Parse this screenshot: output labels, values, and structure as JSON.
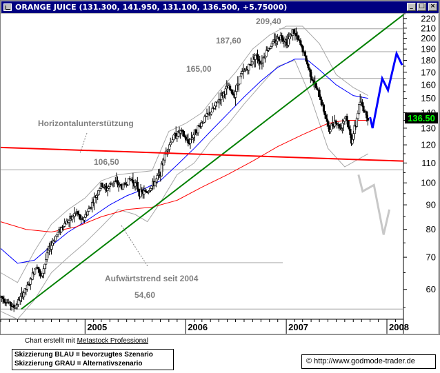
{
  "window": {
    "title": "ORANGE JUICE (131.300, 141.950, 131.100, 136.500, +5.75000)",
    "minimize_glyph": "_",
    "maximize_glyph": "□",
    "close_glyph": "×"
  },
  "chart_data": {
    "type": "candlestick",
    "title": "ORANGE JUICE",
    "y_scale": "log",
    "ylim": [
      52,
      225
    ],
    "x_range": [
      "2004-03",
      "2008-03"
    ],
    "last_price": "136.50",
    "y_ticks": [
      "220",
      "210",
      "200",
      "190",
      "180",
      "170",
      "160",
      "150",
      "140",
      "130",
      "120",
      "110",
      "100",
      "90",
      "80",
      "70",
      "60"
    ],
    "x_ticks": [
      "2005",
      "2006",
      "2007",
      "2008"
    ],
    "price_labels": {
      "high_209": "209,40",
      "level_187": "187,60",
      "level_165": "165,00",
      "level_106": "106,50",
      "low_54": "54,60"
    },
    "annotations": {
      "support": "Horizontalunterstützung",
      "uptrend": "Aufwärtstrend seit 2004"
    },
    "horizontal_levels": [
      209.4,
      187.6,
      165.0,
      106.5,
      54.6
    ],
    "price_path": [
      [
        "2004-03-01",
        58
      ],
      [
        "2004-04-01",
        56
      ],
      [
        "2004-04-20",
        55
      ],
      [
        "2004-05-15",
        58
      ],
      [
        "2004-06-15",
        62
      ],
      [
        "2004-07-10",
        68
      ],
      [
        "2004-07-25",
        63
      ],
      [
        "2004-08-20",
        72
      ],
      [
        "2004-09-15",
        77
      ],
      [
        "2004-10-15",
        82
      ],
      [
        "2004-11-10",
        84
      ],
      [
        "2004-12-01",
        87
      ],
      [
        "2004-12-20",
        83
      ],
      [
        "2005-01-15",
        88
      ],
      [
        "2005-02-10",
        94
      ],
      [
        "2005-03-01",
        99
      ],
      [
        "2005-03-20",
        97
      ],
      [
        "2005-04-15",
        101
      ],
      [
        "2005-05-15",
        98
      ],
      [
        "2005-06-15",
        102
      ],
      [
        "2005-07-05",
        99
      ],
      [
        "2005-07-20",
        95
      ],
      [
        "2005-08-15",
        96
      ],
      [
        "2005-09-10",
        100
      ],
      [
        "2005-10-01",
        105
      ],
      [
        "2005-10-25",
        118
      ],
      [
        "2005-11-20",
        125
      ],
      [
        "2005-12-15",
        128
      ],
      [
        "2006-01-10",
        121
      ],
      [
        "2006-02-10",
        129
      ],
      [
        "2006-03-10",
        136
      ],
      [
        "2006-04-10",
        142
      ],
      [
        "2006-05-10",
        152
      ],
      [
        "2006-06-05",
        158
      ],
      [
        "2006-06-25",
        152
      ],
      [
        "2006-07-20",
        168
      ],
      [
        "2006-08-20",
        175
      ],
      [
        "2006-09-10",
        185
      ],
      [
        "2006-10-01",
        178
      ],
      [
        "2006-10-25",
        190
      ],
      [
        "2006-11-20",
        197
      ],
      [
        "2006-12-10",
        202
      ],
      [
        "2007-01-05",
        197
      ],
      [
        "2007-01-25",
        207
      ],
      [
        "2007-02-10",
        200
      ],
      [
        "2007-03-01",
        190
      ],
      [
        "2007-03-20",
        175
      ],
      [
        "2007-04-10",
        162
      ],
      [
        "2007-05-01",
        152
      ],
      [
        "2007-05-20",
        140
      ],
      [
        "2007-06-05",
        128
      ],
      [
        "2007-06-25",
        135
      ],
      [
        "2007-07-15",
        130
      ],
      [
        "2007-08-05",
        138
      ],
      [
        "2007-08-25",
        122
      ],
      [
        "2007-09-10",
        132
      ],
      [
        "2007-09-25",
        148
      ],
      [
        "2007-10-10",
        142
      ],
      [
        "2007-10-25",
        136.5
      ]
    ],
    "series": [
      {
        "color": "#0000ff",
        "values": [
          [
            "2004-03-01",
            73
          ],
          [
            "2004-05-01",
            68
          ],
          [
            "2004-07-01",
            69
          ],
          [
            "2004-09-01",
            74
          ],
          [
            "2004-11-01",
            79
          ],
          [
            "2005-01-01",
            83
          ],
          [
            "2005-04-01",
            90
          ],
          [
            "2005-06-01",
            94
          ],
          [
            "2005-08-01",
            97
          ],
          [
            "2005-10-01",
            101
          ],
          [
            "2005-12-01",
            109
          ],
          [
            "2006-02-01",
            118
          ],
          [
            "2006-04-01",
            128
          ],
          [
            "2006-06-01",
            139
          ],
          [
            "2006-08-01",
            151
          ],
          [
            "2006-10-01",
            163
          ],
          [
            "2006-12-01",
            174
          ],
          [
            "2007-02-01",
            181
          ],
          [
            "2007-03-15",
            181
          ],
          [
            "2007-05-01",
            172
          ],
          [
            "2007-07-01",
            160
          ],
          [
            "2007-09-01",
            152
          ],
          [
            "2007-10-25",
            150
          ]
        ]
      },
      {
        "color": "#ff0000",
        "values": [
          [
            "2004-03-01",
            83
          ],
          [
            "2004-06-01",
            80
          ],
          [
            "2004-09-01",
            79
          ],
          [
            "2004-12-01",
            81
          ],
          [
            "2005-03-01",
            85
          ],
          [
            "2005-06-01",
            88
          ],
          [
            "2005-09-01",
            89
          ],
          [
            "2005-12-01",
            92
          ],
          [
            "2006-03-01",
            98
          ],
          [
            "2006-06-01",
            104
          ],
          [
            "2006-09-01",
            111
          ],
          [
            "2006-12-01",
            119
          ],
          [
            "2007-03-01",
            126
          ],
          [
            "2007-06-01",
            133
          ],
          [
            "2007-08-01",
            135
          ],
          [
            "2007-10-25",
            135
          ]
        ]
      },
      {
        "color": "#a8a8a8",
        "values": [
          [
            "2004-03-01",
            65
          ],
          [
            "2004-05-01",
            62
          ],
          [
            "2004-07-01",
            72
          ],
          [
            "2004-09-01",
            82
          ],
          [
            "2004-11-01",
            88
          ],
          [
            "2005-01-01",
            93
          ],
          [
            "2005-03-01",
            101
          ],
          [
            "2005-05-01",
            104
          ],
          [
            "2005-07-01",
            105
          ],
          [
            "2005-09-01",
            106
          ],
          [
            "2005-11-01",
            128
          ],
          [
            "2006-01-01",
            133
          ],
          [
            "2006-03-01",
            140
          ],
          [
            "2006-05-01",
            155
          ],
          [
            "2006-07-01",
            170
          ],
          [
            "2006-09-01",
            190
          ],
          [
            "2006-11-01",
            203
          ],
          [
            "2007-01-01",
            212
          ],
          [
            "2007-03-01",
            212
          ],
          [
            "2007-05-01",
            195
          ],
          [
            "2007-07-01",
            168
          ],
          [
            "2007-09-01",
            158
          ],
          [
            "2007-10-25",
            152
          ]
        ]
      },
      {
        "color": "#a8a8a8",
        "values": [
          [
            "2004-03-01",
            54
          ],
          [
            "2004-05-01",
            52
          ],
          [
            "2004-07-01",
            57
          ],
          [
            "2004-09-01",
            65
          ],
          [
            "2004-11-01",
            70
          ],
          [
            "2005-01-01",
            75
          ],
          [
            "2005-03-01",
            81
          ],
          [
            "2005-05-01",
            88
          ],
          [
            "2005-07-01",
            86
          ],
          [
            "2005-08-15",
            83
          ],
          [
            "2005-10-01",
            91
          ],
          [
            "2005-12-01",
            104
          ],
          [
            "2006-02-01",
            110
          ],
          [
            "2006-04-01",
            122
          ],
          [
            "2006-06-01",
            132
          ],
          [
            "2006-08-01",
            146
          ],
          [
            "2006-10-01",
            160
          ],
          [
            "2006-12-01",
            175
          ],
          [
            "2007-02-01",
            180
          ],
          [
            "2007-04-01",
            150
          ],
          [
            "2007-06-01",
            118
          ],
          [
            "2007-08-01",
            108
          ],
          [
            "2007-10-01",
            113
          ],
          [
            "2007-10-25",
            115
          ]
        ]
      }
    ],
    "trendlines": [
      {
        "color": "#008000",
        "points": [
          [
            "2004-05-15",
            54.6
          ],
          [
            "2008-03-01",
            224
          ]
        ]
      },
      {
        "color": "#ff0000",
        "points": [
          [
            "2004-03-01",
            118.5
          ],
          [
            "2008-03-01",
            111
          ]
        ]
      }
    ],
    "scenarios": [
      {
        "label": "bevorzugtes Szenario",
        "color": "#0000ff",
        "points": [
          [
            "2007-11-01",
            137
          ],
          [
            "2007-11-10",
            130
          ],
          [
            "2007-12-15",
            165
          ],
          [
            "2008-01-05",
            156
          ],
          [
            "2008-02-05",
            186
          ],
          [
            "2008-02-25",
            176
          ]
        ]
      },
      {
        "label": "Alternativszenario",
        "color": "#c8c8c8",
        "points": [
          [
            "2007-09-20",
            104
          ],
          [
            "2007-10-05",
            96
          ],
          [
            "2007-11-15",
            99
          ],
          [
            "2007-12-20",
            78
          ],
          [
            "2008-01-10",
            88
          ]
        ]
      }
    ]
  },
  "footer": {
    "credit_prefix": "Chart erstellt mit ",
    "credit_product": "Metastock Professional",
    "legend_line1": "Skizzierung BLAU = bevorzugtes Szenario",
    "legend_line2": "Skizzierung GRAU = Alternativszenario",
    "url": "http://www.godmode-trader.de"
  }
}
